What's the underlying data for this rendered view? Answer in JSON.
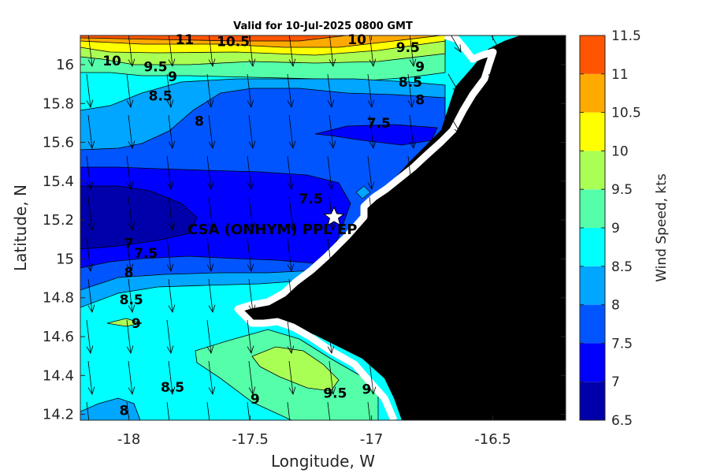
{
  "chart_data": {
    "type": "heatmap",
    "title": "Valid for 10-Jul-2025 0800 GMT",
    "xlabel": "Longitude, W",
    "ylabel": "Latitude, N",
    "xlim": [
      -18.2,
      -16.2
    ],
    "ylim": [
      14.17,
      16.15
    ],
    "xticks": [
      -18,
      -17.5,
      -17,
      -16.5
    ],
    "yticks": [
      14.2,
      14.4,
      14.6,
      14.8,
      15,
      15.2,
      15.4,
      15.6,
      15.8,
      16
    ],
    "colorbar": {
      "label": "Wind Speed, kts",
      "levels": [
        6.5,
        7,
        7.5,
        8,
        8.5,
        9,
        9.5,
        10,
        10.5,
        11,
        11.5
      ],
      "colors": [
        "#0000aa",
        "#0000ff",
        "#0055ff",
        "#00a6ff",
        "#00ffff",
        "#55ffaa",
        "#aaff55",
        "#ffff00",
        "#ffaa00",
        "#ff5500"
      ]
    },
    "contour_labels": [
      {
        "text": "11",
        "lon": -17.77,
        "lat": 16.13
      },
      {
        "text": "10.5",
        "lon": -17.57,
        "lat": 16.12
      },
      {
        "text": "10",
        "lon": -17.06,
        "lat": 16.13
      },
      {
        "text": "9.5",
        "lon": -16.85,
        "lat": 16.09
      },
      {
        "text": "10",
        "lon": -18.07,
        "lat": 16.02
      },
      {
        "text": "9.5",
        "lon": -17.89,
        "lat": 15.99
      },
      {
        "text": "9",
        "lon": -17.82,
        "lat": 15.94
      },
      {
        "text": "9",
        "lon": -16.8,
        "lat": 15.99
      },
      {
        "text": "8.5",
        "lon": -16.84,
        "lat": 15.91
      },
      {
        "text": "8.5",
        "lon": -17.87,
        "lat": 15.84
      },
      {
        "text": "8",
        "lon": -16.8,
        "lat": 15.82
      },
      {
        "text": "8",
        "lon": -17.71,
        "lat": 15.71
      },
      {
        "text": "7.5",
        "lon": -16.97,
        "lat": 15.7
      },
      {
        "text": "7.5",
        "lon": -17.25,
        "lat": 15.31
      },
      {
        "text": "7",
        "lon": -18.0,
        "lat": 15.08
      },
      {
        "text": "7.5",
        "lon": -17.93,
        "lat": 15.03
      },
      {
        "text": "8",
        "lon": -18.0,
        "lat": 14.93
      },
      {
        "text": "8.5",
        "lon": -17.99,
        "lat": 14.79
      },
      {
        "text": "9",
        "lon": -17.97,
        "lat": 14.67
      },
      {
        "text": "8.5",
        "lon": -17.82,
        "lat": 14.34
      },
      {
        "text": "9",
        "lon": -17.48,
        "lat": 14.28
      },
      {
        "text": "9.5",
        "lon": -17.15,
        "lat": 14.31
      },
      {
        "text": "9",
        "lon": -17.02,
        "lat": 14.33
      },
      {
        "text": "8",
        "lon": -18.02,
        "lat": 14.22
      }
    ],
    "annotation": {
      "text": "CSA (ONHYM) PPL EP",
      "lon": -17.12,
      "lat": 15.22
    }
  }
}
